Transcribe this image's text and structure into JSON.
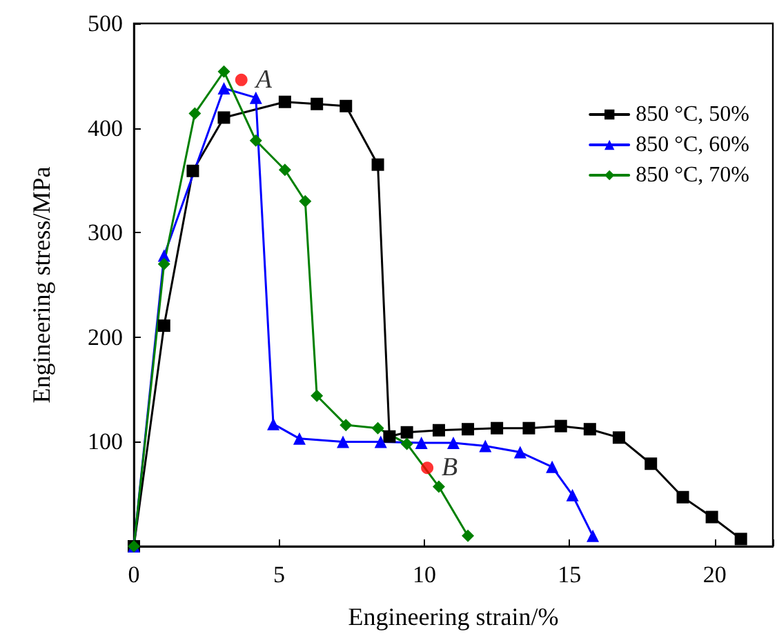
{
  "chart_data": {
    "type": "line",
    "xlabel": "Engineering strain/%",
    "ylabel": "Engineering stress/MPa",
    "xlim": [
      0,
      22
    ],
    "xticks": [
      0,
      5,
      10,
      15,
      20
    ],
    "ylim": [
      0,
      500
    ],
    "yticks": [
      {
        "value": 0,
        "label": null
      },
      100,
      200,
      300,
      400,
      500
    ],
    "grid": false,
    "legend": "top right",
    "line_style": "solid",
    "series": [
      {
        "name": "850 °C, 50%",
        "color": "#000000",
        "marker": "square",
        "x": [
          0,
          1.04,
          2.03,
          3.1,
          5.2,
          6.3,
          7.3,
          8.4,
          8.8,
          9.4,
          10.5,
          11.5,
          12.5,
          13.6,
          14.7,
          15.7,
          16.7,
          17.8,
          18.9,
          19.9,
          20.9
        ],
        "values": [
          0,
          211,
          359,
          410,
          425,
          423,
          421,
          365,
          105,
          109,
          111,
          112,
          113,
          113,
          115,
          112,
          104,
          79,
          47,
          28,
          7
        ]
      },
      {
        "name": "850 °C, 60%",
        "color": "#0000ff",
        "marker": "triangle",
        "x": [
          0,
          1.04,
          3.1,
          4.2,
          4.8,
          5.7,
          7.2,
          8.5,
          9.9,
          11.0,
          12.1,
          13.3,
          14.4,
          15.1,
          15.8
        ],
        "values": [
          0,
          278,
          438,
          429,
          117,
          103,
          100,
          100,
          99,
          99,
          96,
          90,
          76,
          49,
          10
        ]
      },
      {
        "name": "850 °C, 70%",
        "color": "#008000",
        "marker": "diamond",
        "x": [
          0,
          1.04,
          2.1,
          3.1,
          4.2,
          5.2,
          5.9,
          6.3,
          7.3,
          8.4,
          9.4,
          10.5,
          11.5
        ],
        "values": [
          0,
          270,
          414,
          454,
          388,
          360,
          330,
          144,
          116,
          113,
          98,
          57,
          10
        ]
      }
    ],
    "annotations": [
      {
        "text": "A",
        "x": 3.7,
        "y": 446
      },
      {
        "text": "B",
        "x": 10.1,
        "y": 75
      }
    ]
  }
}
